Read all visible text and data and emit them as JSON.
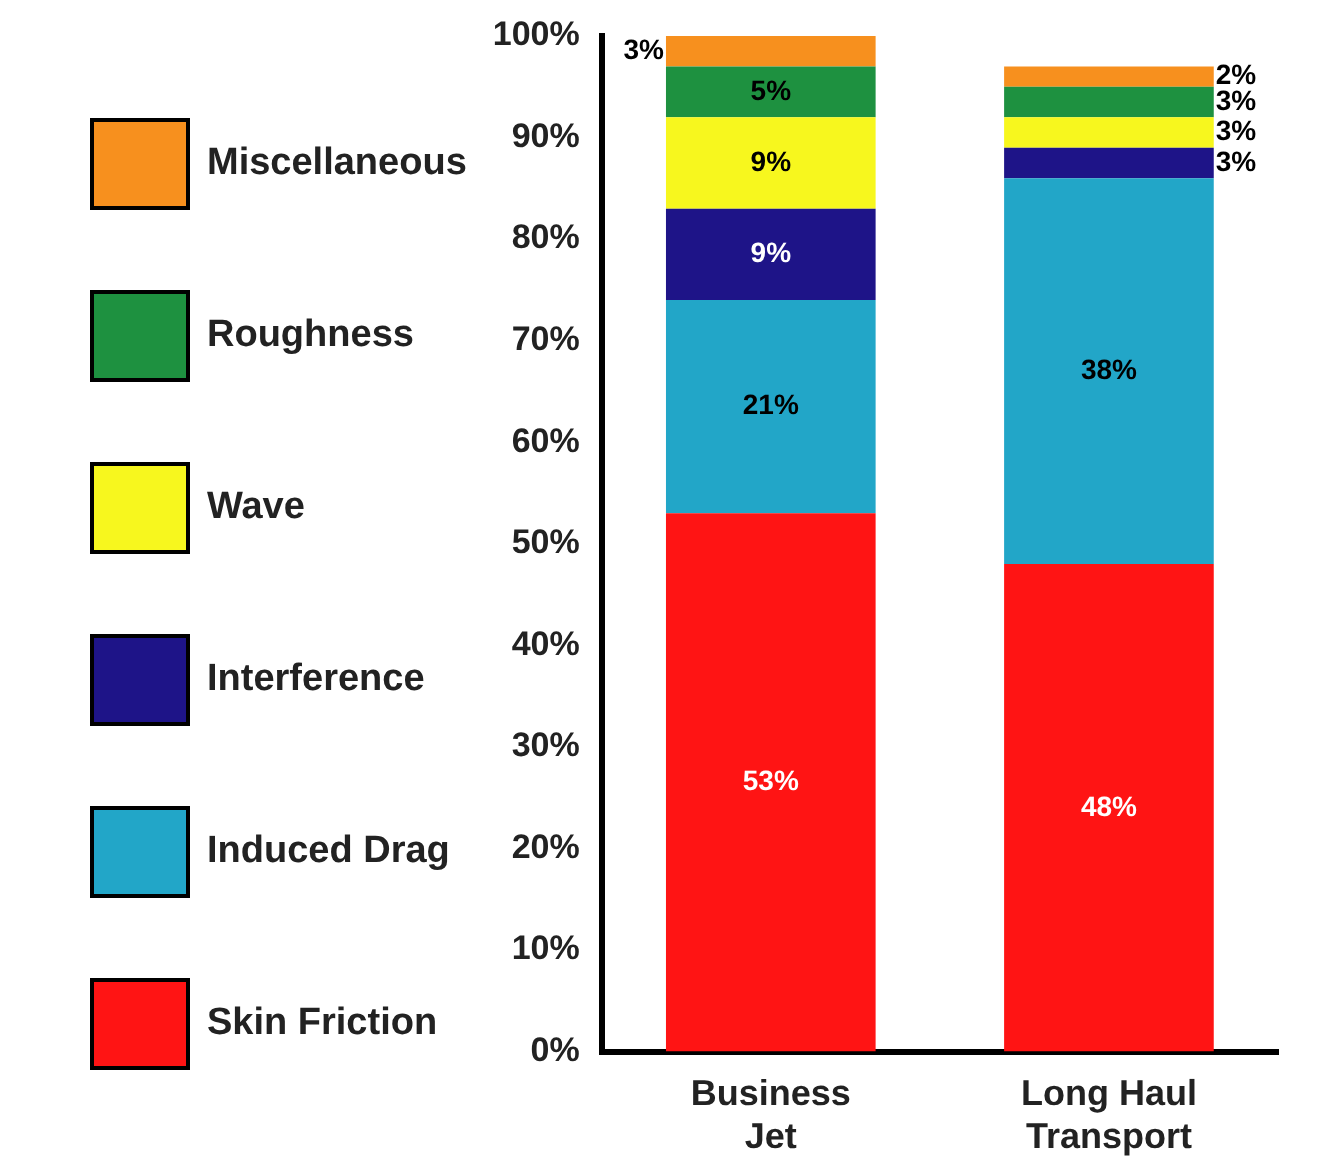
{
  "chart_data": {
    "type": "bar",
    "stacked": true,
    "categories": [
      "Business Jet",
      "Long Haul Transport"
    ],
    "series": [
      {
        "name": "Skin Friction",
        "color": "#ff1414",
        "values": [
          53,
          48
        ],
        "value_labels": [
          "53%",
          "48%"
        ]
      },
      {
        "name": "Induced Drag",
        "color": "#22a6c8",
        "values": [
          21,
          38
        ],
        "value_labels": [
          "21%",
          "38%"
        ]
      },
      {
        "name": "Interference",
        "color": "#1e1488",
        "values": [
          9,
          3
        ],
        "value_labels": [
          "9%",
          "3%"
        ]
      },
      {
        "name": "Wave",
        "color": "#f7f71e",
        "values": [
          9,
          3
        ],
        "value_labels": [
          "9%",
          "3%"
        ]
      },
      {
        "name": "Roughness",
        "color": "#1e9140",
        "values": [
          5,
          3
        ],
        "value_labels": [
          "5%",
          "3%"
        ]
      },
      {
        "name": "Miscellaneous",
        "color": "#f7901e",
        "values": [
          3,
          2
        ],
        "value_labels": [
          "3%",
          "2%"
        ]
      }
    ],
    "ylim": [
      0,
      100
    ],
    "yticks": [
      {
        "value": 0,
        "label": "0%"
      },
      {
        "value": 10,
        "label": "10%"
      },
      {
        "value": 20,
        "label": "20%"
      },
      {
        "value": 30,
        "label": "30%"
      },
      {
        "value": 40,
        "label": "40%"
      },
      {
        "value": 50,
        "label": "50%"
      },
      {
        "value": 60,
        "label": "60%"
      },
      {
        "value": 70,
        "label": "70%"
      },
      {
        "value": 80,
        "label": "80%"
      },
      {
        "value": 90,
        "label": "90%"
      },
      {
        "value": 100,
        "label": "100%"
      }
    ],
    "legend": "left"
  }
}
